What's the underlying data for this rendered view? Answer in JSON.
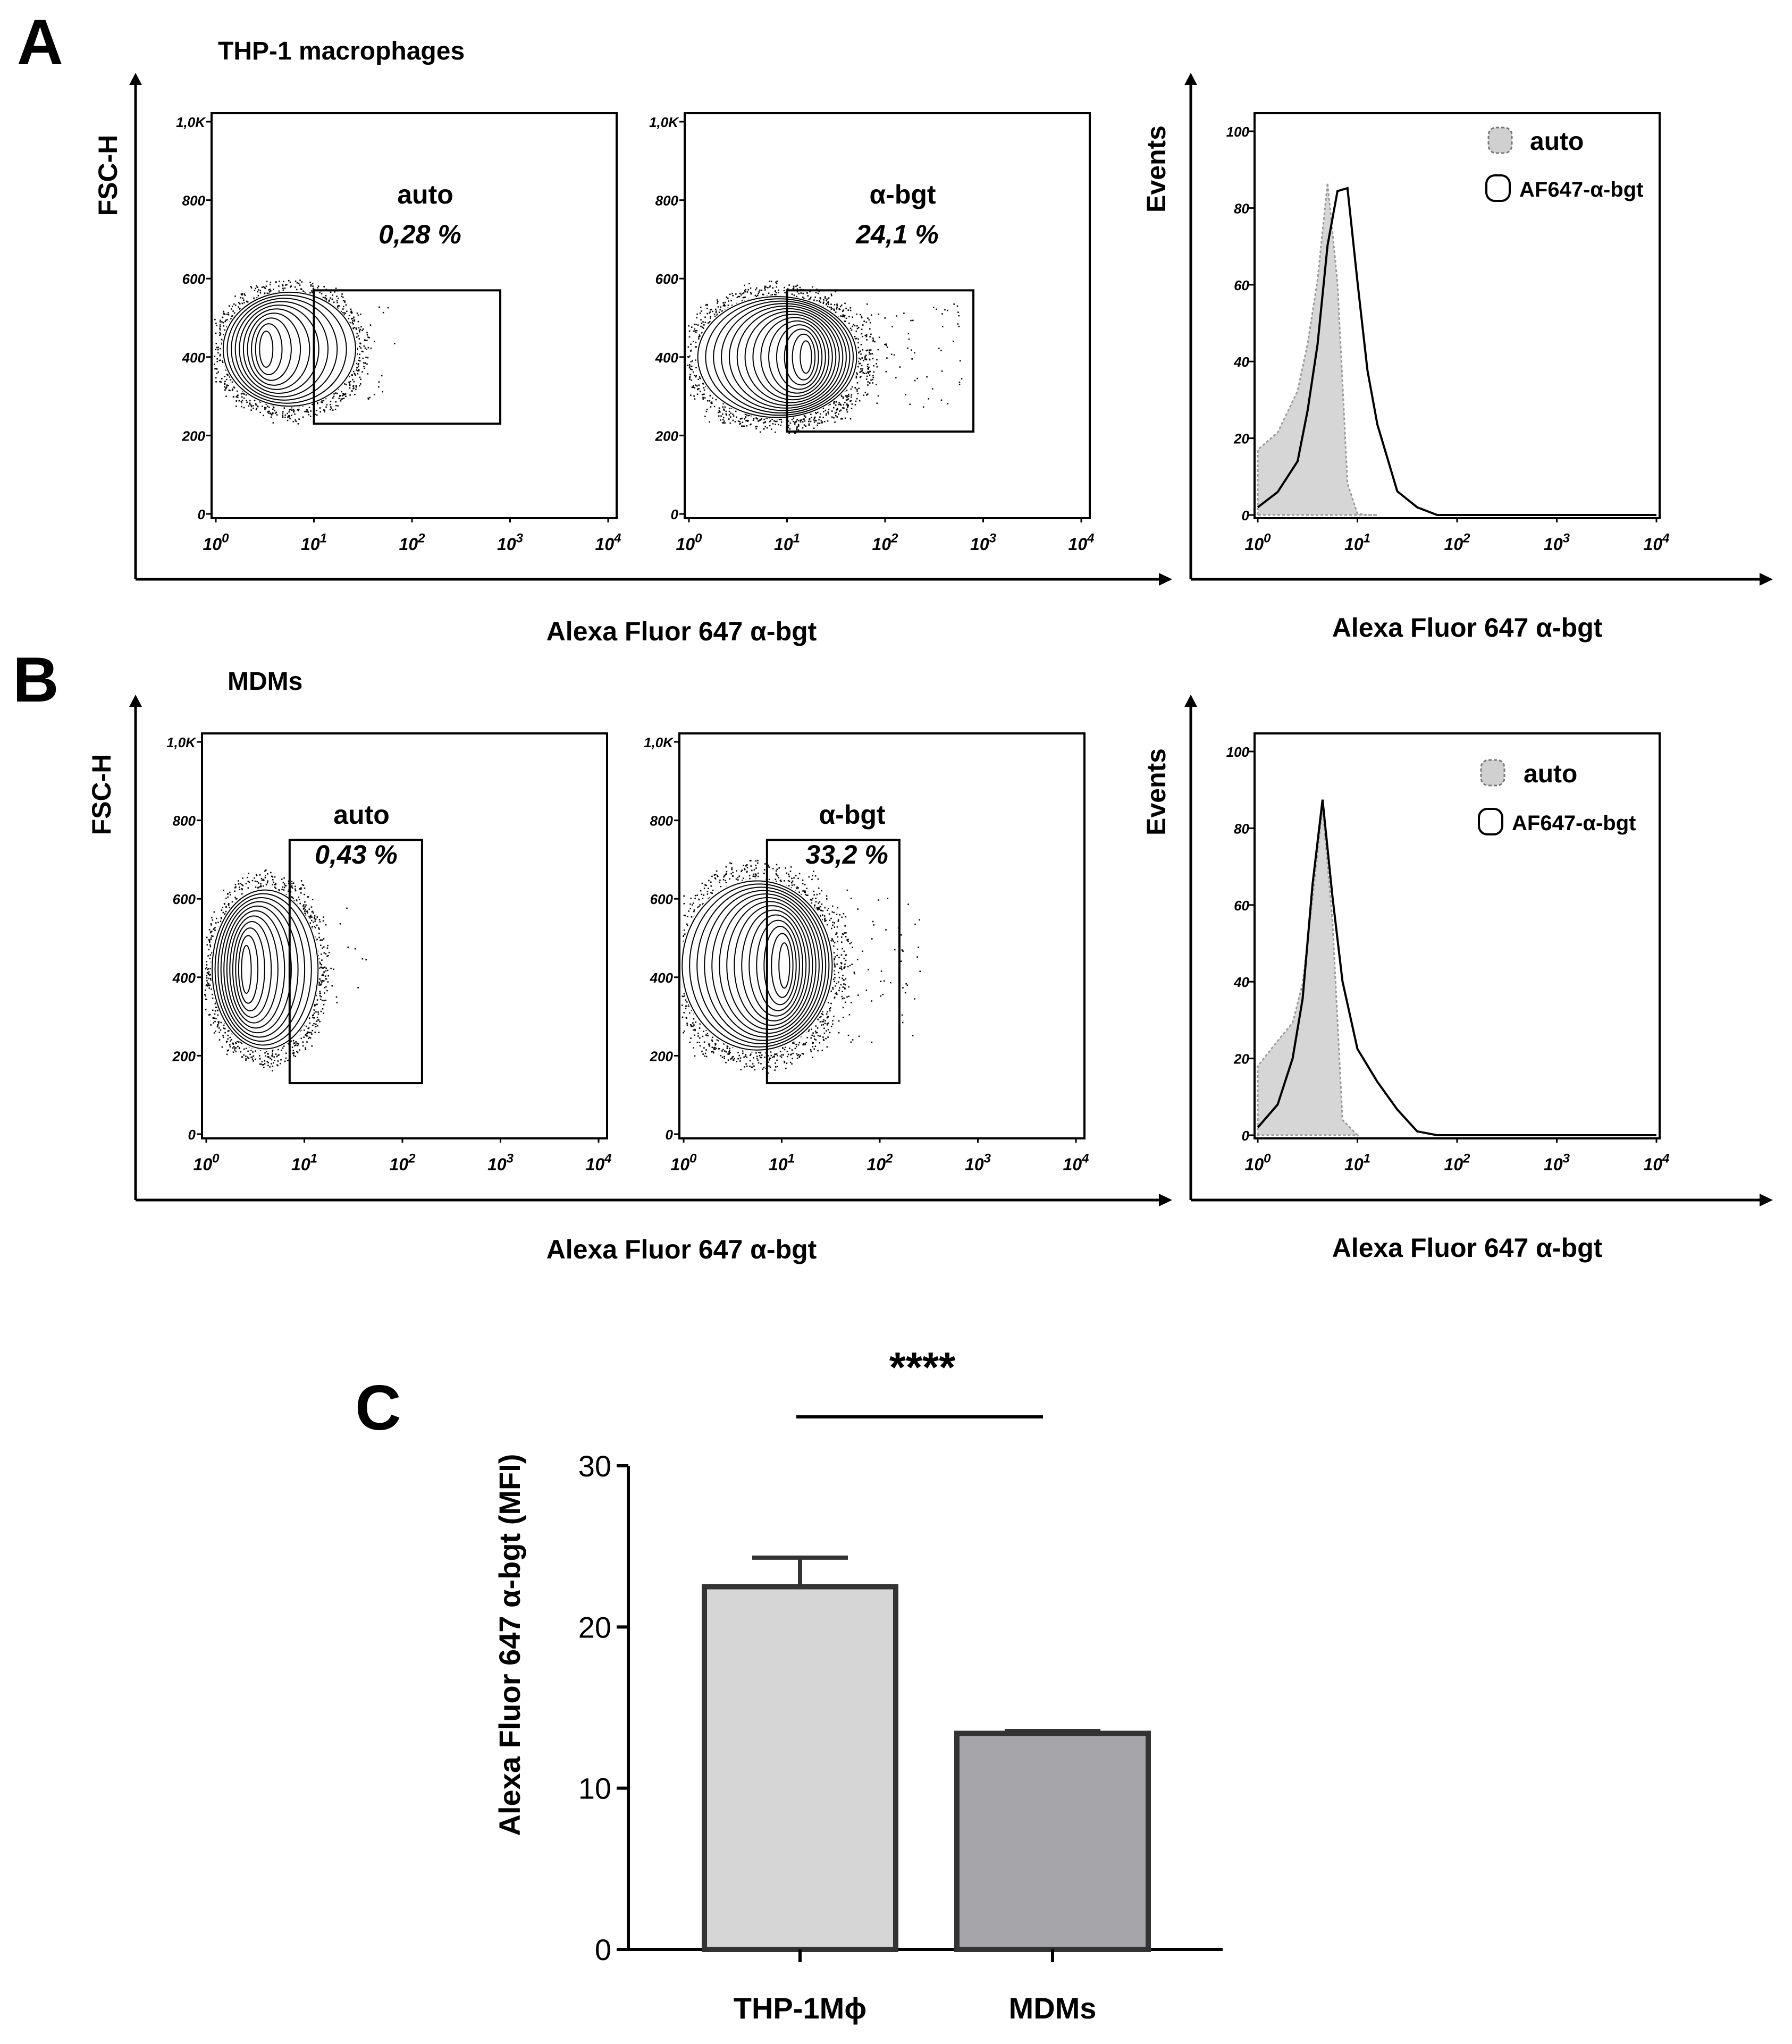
{
  "chart_data": [
    {
      "panel": "A",
      "type": "contour-density",
      "title": "THP-1 macrophages",
      "xlabel": "Alexa Fluor 647 α-bgt",
      "ylabel": "FSC-H",
      "x_scale": "log",
      "x_ticks": [
        "0",
        "1",
        "2",
        "3",
        "4"
      ],
      "y_ticks": [
        "0",
        "200",
        "400",
        "600",
        "800",
        "1,0K"
      ],
      "ylim": [
        0,
        1000
      ],
      "plots": [
        {
          "gate_label": "auto",
          "gate_percent": "0,28",
          "gate_x": [
            1,
            2.9
          ],
          "gate_y": [
            230,
            570
          ]
        },
        {
          "gate_label": "α-bgt",
          "gate_percent": "24,1",
          "gate_x": [
            1,
            2.9
          ],
          "gate_y": [
            210,
            570
          ]
        }
      ]
    },
    {
      "panel": "A",
      "type": "histogram",
      "xlabel": "Alexa Fluor 647 α-bgt",
      "ylabel": "Events",
      "x_scale": "log",
      "x_ticks": [
        "0",
        "1",
        "2",
        "3",
        "4"
      ],
      "y_ticks": [
        "0",
        "20",
        "40",
        "60",
        "80",
        "100"
      ],
      "ylim": [
        0,
        100
      ],
      "legend": [
        "auto",
        "AF647-α-bgt"
      ],
      "series": [
        {
          "name": "auto",
          "x": [
            0,
            0.2,
            0.4,
            0.5,
            0.6,
            0.7,
            0.8,
            0.9,
            1.0,
            1.1,
            1.2
          ],
          "values": [
            17,
            22,
            32,
            45,
            62,
            86,
            60,
            8,
            0,
            0,
            0
          ]
        },
        {
          "name": "AF647-α-bgt",
          "x": [
            0,
            0.2,
            0.4,
            0.5,
            0.6,
            0.7,
            0.8,
            0.9,
            1.0,
            1.1,
            1.2,
            1.4,
            1.6,
            1.8,
            2.0
          ],
          "values": [
            2,
            6,
            14,
            28,
            44,
            70,
            84,
            86,
            60,
            38,
            24,
            6,
            2,
            0,
            0
          ]
        }
      ]
    },
    {
      "panel": "B",
      "type": "contour-density",
      "title": "MDMs",
      "xlabel": "Alexa Fluor 647 α-bgt",
      "ylabel": "FSC-H",
      "x_scale": "log",
      "x_ticks": [
        "0",
        "1",
        "2",
        "3",
        "4"
      ],
      "y_ticks": [
        "0",
        "200",
        "400",
        "600",
        "800",
        "1,0K"
      ],
      "ylim": [
        0,
        1000
      ],
      "plots": [
        {
          "gate_label": "auto",
          "gate_percent": "0,43",
          "gate_x": [
            0.85,
            2.2
          ],
          "gate_y": [
            130,
            750
          ]
        },
        {
          "gate_label": "α-bgt",
          "gate_percent": "33,2",
          "gate_x": [
            0.85,
            2.2
          ],
          "gate_y": [
            130,
            750
          ]
        }
      ]
    },
    {
      "panel": "B",
      "type": "histogram",
      "xlabel": "Alexa Fluor 647 α-bgt",
      "ylabel": "Events",
      "x_scale": "log",
      "x_ticks": [
        "0",
        "1",
        "2",
        "3",
        "4"
      ],
      "y_ticks": [
        "0",
        "20",
        "40",
        "60",
        "80",
        "100"
      ],
      "ylim": [
        0,
        100
      ],
      "legend": [
        "auto",
        "AF647-α-bgt"
      ],
      "series": [
        {
          "name": "auto",
          "x": [
            0,
            0.2,
            0.35,
            0.45,
            0.55,
            0.65,
            0.75,
            0.85,
            1.0
          ],
          "values": [
            18,
            24,
            30,
            40,
            62,
            86,
            56,
            4,
            0
          ]
        },
        {
          "name": "AF647-α-bgt",
          "x": [
            0,
            0.2,
            0.35,
            0.45,
            0.55,
            0.65,
            0.75,
            0.85,
            1.0,
            1.2,
            1.4,
            1.6,
            1.8,
            2.0
          ],
          "values": [
            2,
            8,
            20,
            36,
            66,
            88,
            62,
            40,
            22,
            14,
            6,
            1,
            0,
            0
          ]
        }
      ]
    },
    {
      "panel": "C",
      "type": "bar",
      "categories": [
        "THP-1Mϕ",
        "MDMs"
      ],
      "values": [
        22.5,
        13.4
      ],
      "errors": [
        1.8,
        0.15
      ],
      "ylabel": "Alexa Fluor 647 α-bgt (MFI)",
      "ylim": [
        0,
        30
      ],
      "y_ticks": [
        0,
        10,
        20,
        30
      ],
      "significance": "****",
      "bar_colors": [
        "#d6d6d6",
        "#a5a5aa"
      ]
    }
  ],
  "panel_letters": [
    "A",
    "B",
    "C"
  ]
}
